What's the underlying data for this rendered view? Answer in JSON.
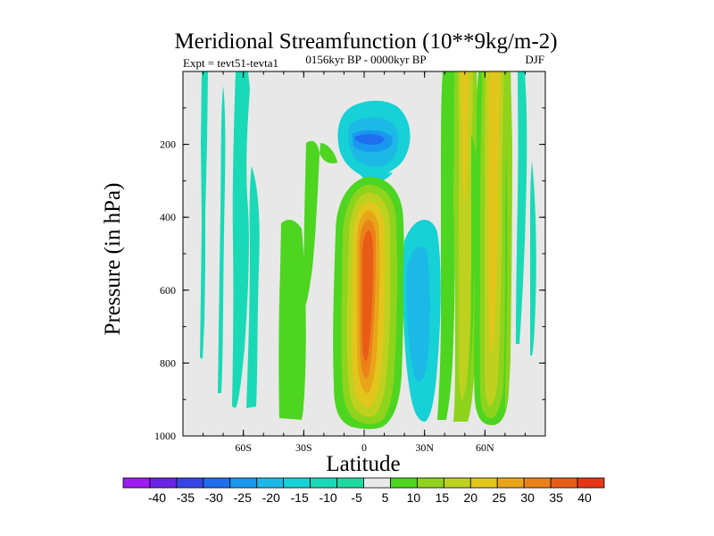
{
  "chart_data": {
    "type": "contour",
    "title": "Meridional Streamfunction (10**9kg/m-2)",
    "subtitle_left": "Expt = tevt51-tevta1",
    "subtitle_center": "0156kyr BP - 0000kyr BP",
    "subtitle_right": "DJF",
    "xlabel": "Latitude",
    "ylabel": "Pressure (in hPa)",
    "xlim": [
      -90,
      90
    ],
    "ylim": [
      1000,
      0
    ],
    "x_ticks": [
      {
        "value": -60,
        "label": "60S"
      },
      {
        "value": -30,
        "label": "30S"
      },
      {
        "value": 0,
        "label": "0"
      },
      {
        "value": 30,
        "label": "30N"
      },
      {
        "value": 60,
        "label": "60N"
      }
    ],
    "y_ticks": [
      {
        "value": 200,
        "label": "200"
      },
      {
        "value": 400,
        "label": "400"
      },
      {
        "value": 600,
        "label": "600"
      },
      {
        "value": 800,
        "label": "800"
      },
      {
        "value": 1000,
        "label": "1000"
      }
    ],
    "colorbar": {
      "labels": [
        "-40",
        "-35",
        "-30",
        "-25",
        "-20",
        "-15",
        "-10",
        "-5",
        "5",
        "10",
        "15",
        "20",
        "25",
        "30",
        "35",
        "40"
      ],
      "colors": [
        "#9d1cf0",
        "#6a24e6",
        "#3845e5",
        "#1f6ef0",
        "#1a97ef",
        "#1cb9e6",
        "#16d1d6",
        "#1ad9b6",
        "#1fd9a0",
        "#eaeaea",
        "#4dd520",
        "#8ed31c",
        "#bfd11f",
        "#e2c61c",
        "#e9a51a",
        "#ea8119",
        "#e95c17",
        "#e53716"
      ]
    },
    "background_color": "#e8e8e8",
    "regions": [
      {
        "name": "tropical-positive-cell",
        "lat_center": 0,
        "pressure_range": [
          290,
          975
        ],
        "peak_value": 40,
        "sign": "positive"
      },
      {
        "name": "upper-tropical-negative",
        "lat_center": -2,
        "pressure_range": [
          90,
          280
        ],
        "peak_value": -30,
        "sign": "negative"
      },
      {
        "name": "northern-subtropical-negative",
        "lat_center": 27,
        "pressure_range": [
          330,
          910
        ],
        "peak_value": -15,
        "sign": "negative"
      },
      {
        "name": "northern-midlatitude-positive",
        "lat_center": 55,
        "pressure_range": [
          0,
          970
        ],
        "peak_value": 20,
        "sign": "positive"
      },
      {
        "name": "southern-midlatitude-negative",
        "lat_center": -65,
        "pressure_range": [
          0,
          890
        ],
        "peak_value": -5,
        "sign": "negative"
      }
    ]
  }
}
